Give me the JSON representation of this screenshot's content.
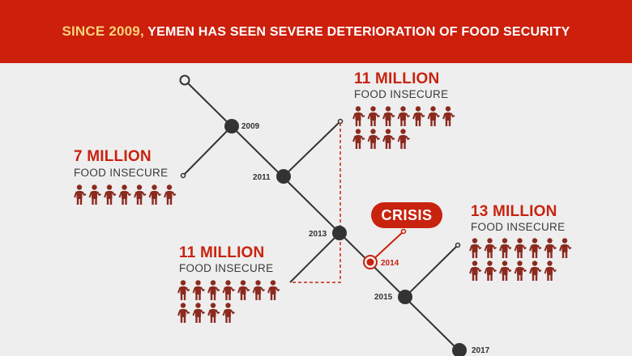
{
  "header": {
    "highlight": "SINCE 2009,",
    "rest": "YEMEN HAS SEEN SEVERE DETERIORATION OF FOOD SECURITY"
  },
  "colors": {
    "banner": "#cc1f0c",
    "accent": "#c8230f",
    "line": "#333333",
    "person": "#8b2a1f"
  },
  "timeline": {
    "years": [
      "2009",
      "2011",
      "2013",
      "2014",
      "2015",
      "2017"
    ]
  },
  "callouts": {
    "c2009": {
      "amount": "7 MILLION",
      "label": "FOOD INSECURE",
      "people": 7,
      "icon": "person-icon"
    },
    "c2011": {
      "amount": "11 MILLION",
      "label": "FOOD INSECURE",
      "people": 11,
      "icon": "person-icon"
    },
    "c2013": {
      "amount": "11 MILLION",
      "label": "FOOD INSECURE",
      "people": 11,
      "icon": "person-icon"
    },
    "c2015": {
      "amount": "13 MILLION",
      "label": "FOOD INSECURE",
      "people": 13,
      "icon": "person-icon"
    }
  },
  "crisis": {
    "label": "CRISIS"
  }
}
